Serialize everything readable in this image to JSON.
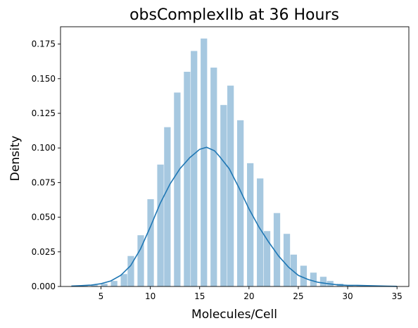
{
  "chart_data": {
    "type": "bar",
    "title": "obsComplexIIb at 36 Hours",
    "xlabel": "Molecules/Cell",
    "ylabel": "Density",
    "xlim": [
      0.9,
      36.2
    ],
    "ylim": [
      0,
      0.1875
    ],
    "xticks": [
      5,
      10,
      15,
      20,
      25,
      30,
      35
    ],
    "yticks": [
      0.0,
      0.025,
      0.05,
      0.075,
      0.1,
      0.125,
      0.15,
      0.175
    ],
    "xtick_labels": [
      "5",
      "10",
      "15",
      "20",
      "25",
      "30",
      "35"
    ],
    "ytick_labels": [
      "0.000",
      "0.025",
      "0.050",
      "0.075",
      "0.100",
      "0.125",
      "0.150",
      "0.175"
    ],
    "grid": false,
    "histogram": {
      "bin_width": 0.66,
      "color": "#a6c8e0",
      "bins": [
        {
          "x0": 2.0,
          "value": 0.0005
        },
        {
          "x0": 3.0,
          "value": 0.0005
        },
        {
          "x0": 4.0,
          "value": 0.001
        },
        {
          "x0": 5.0,
          "value": 0.002
        },
        {
          "x0": 6.0,
          "value": 0.004
        },
        {
          "x0": 7.0,
          "value": 0.009
        },
        {
          "x0": 7.7,
          "value": 0.022
        },
        {
          "x0": 8.7,
          "value": 0.037
        },
        {
          "x0": 9.7,
          "value": 0.063
        },
        {
          "x0": 10.7,
          "value": 0.088
        },
        {
          "x0": 11.4,
          "value": 0.115
        },
        {
          "x0": 12.4,
          "value": 0.14
        },
        {
          "x0": 13.4,
          "value": 0.155
        },
        {
          "x0": 14.1,
          "value": 0.17
        },
        {
          "x0": 15.1,
          "value": 0.179
        },
        {
          "x0": 16.1,
          "value": 0.158
        },
        {
          "x0": 17.1,
          "value": 0.131
        },
        {
          "x0": 17.8,
          "value": 0.145
        },
        {
          "x0": 18.8,
          "value": 0.12
        },
        {
          "x0": 19.8,
          "value": 0.089
        },
        {
          "x0": 20.8,
          "value": 0.078
        },
        {
          "x0": 21.5,
          "value": 0.04
        },
        {
          "x0": 22.5,
          "value": 0.053
        },
        {
          "x0": 23.5,
          "value": 0.038
        },
        {
          "x0": 24.2,
          "value": 0.023
        },
        {
          "x0": 25.2,
          "value": 0.015
        },
        {
          "x0": 26.2,
          "value": 0.01
        },
        {
          "x0": 27.2,
          "value": 0.007
        },
        {
          "x0": 27.9,
          "value": 0.004
        },
        {
          "x0": 28.9,
          "value": 0.002
        },
        {
          "x0": 29.9,
          "value": 0.001
        },
        {
          "x0": 30.9,
          "value": 0.001
        }
      ]
    },
    "kde": {
      "color": "#1f77b4",
      "x": [
        2,
        3,
        4,
        5,
        6,
        7,
        8,
        9,
        10,
        11,
        12,
        13,
        14,
        15,
        15.7,
        16.5,
        17,
        18,
        19,
        20,
        21,
        22,
        23,
        24,
        25,
        26,
        27,
        28,
        29,
        30,
        31,
        32,
        33,
        34,
        35
      ],
      "y": [
        0.0003,
        0.0006,
        0.001,
        0.002,
        0.004,
        0.008,
        0.015,
        0.027,
        0.043,
        0.06,
        0.074,
        0.085,
        0.093,
        0.099,
        0.1005,
        0.098,
        0.094,
        0.085,
        0.071,
        0.056,
        0.043,
        0.032,
        0.022,
        0.014,
        0.008,
        0.005,
        0.003,
        0.002,
        0.0012,
        0.0008,
        0.0008,
        0.0006,
        0.0004,
        0.0002,
        0.0001
      ]
    }
  }
}
